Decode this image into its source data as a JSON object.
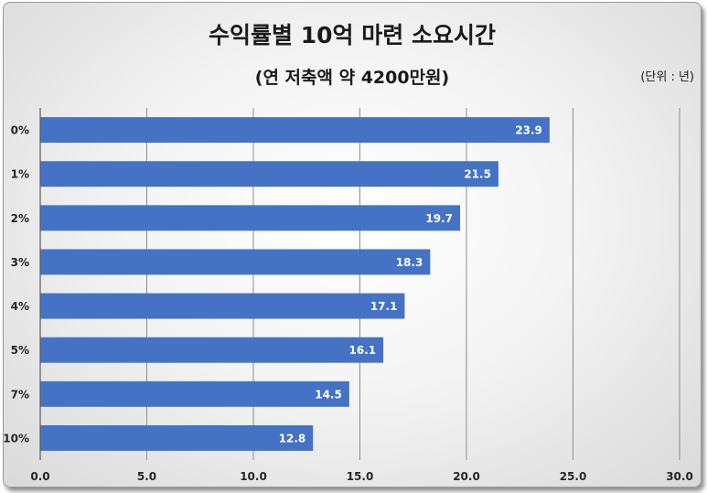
{
  "chart_data": {
    "type": "bar",
    "orientation": "horizontal",
    "title": "수익률별 10억 마련 소요시간",
    "subtitle": "(연 저축액 약 4200만원)",
    "unit_note": "(단위 : 년)",
    "categories": [
      "0%",
      "1%",
      "2%",
      "3%",
      "4%",
      "5%",
      "7%",
      "10%"
    ],
    "values": [
      23.9,
      21.5,
      19.7,
      18.3,
      17.1,
      16.1,
      14.5,
      12.8
    ],
    "data_labels": [
      "23.9",
      "21.5",
      "19.7",
      "18.3",
      "17.1",
      "16.1",
      "14.5",
      "12.8"
    ],
    "xlim": [
      0,
      30
    ],
    "x_ticks": [
      0,
      5,
      10,
      15,
      20,
      25,
      30
    ],
    "x_tick_labels": [
      "0.0",
      "5.0",
      "10.0",
      "15.0",
      "20.0",
      "25.0",
      "30.0"
    ],
    "grid": true,
    "legend": "none",
    "bar_color": "#4472c4"
  }
}
